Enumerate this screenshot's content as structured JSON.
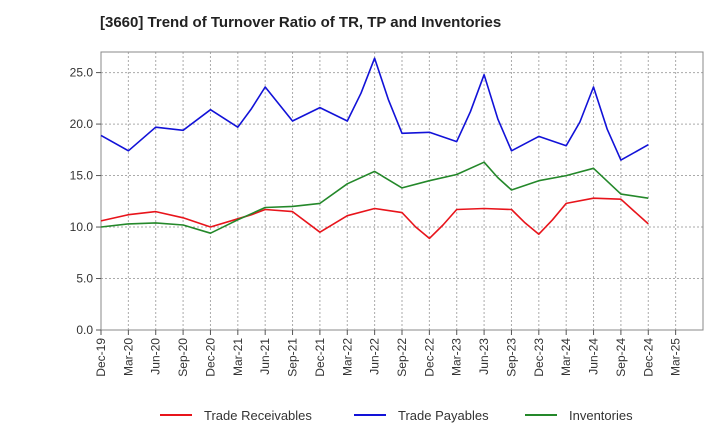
{
  "title": "[3660]  Trend of Turnover Ratio of TR, TP and Inventories",
  "chart_data": {
    "type": "line",
    "x": [
      "Dec-19",
      "Mar-20",
      "Jun-20",
      "Sep-20",
      "Dec-20",
      "Mar-21",
      "Jun-21",
      "Sep-21",
      "Dec-21",
      "Mar-22",
      "Jun-22",
      "Sep-22",
      "Dec-22",
      "Mar-23",
      "Jun-23",
      "Sep-23",
      "Dec-23",
      "Mar-24",
      "Jun-24",
      "Sep-24",
      "Dec-24",
      "Mar-25"
    ],
    "y_ticks": [
      "0.0",
      "5.0",
      "10.0",
      "15.0",
      "20.0",
      "25.0"
    ],
    "ylim": [
      0,
      27
    ],
    "grid": true,
    "legend_position": "bottom",
    "series": [
      {
        "name": "Trade Receivables",
        "color": "#e8141b",
        "points": [
          [
            0,
            10.6
          ],
          [
            1,
            11.2
          ],
          [
            2,
            11.5
          ],
          [
            3,
            10.9
          ],
          [
            4,
            10.0
          ],
          [
            5,
            10.8
          ],
          [
            5.5,
            11.2
          ],
          [
            6,
            11.7
          ],
          [
            7,
            11.5
          ],
          [
            8,
            9.5
          ],
          [
            9,
            11.1
          ],
          [
            10,
            11.8
          ],
          [
            11,
            11.4
          ],
          [
            11.5,
            10.0
          ],
          [
            12,
            8.9
          ],
          [
            12.5,
            10.2
          ],
          [
            13,
            11.7
          ],
          [
            14,
            11.8
          ],
          [
            15,
            11.7
          ],
          [
            15.5,
            10.4
          ],
          [
            16,
            9.3
          ],
          [
            16.5,
            10.7
          ],
          [
            17,
            12.3
          ],
          [
            18,
            12.8
          ],
          [
            19,
            12.7
          ],
          [
            19.5,
            11.5
          ],
          [
            20,
            10.3
          ]
        ]
      },
      {
        "name": "Trade Payables",
        "color": "#1212d8",
        "points": [
          [
            0,
            18.9
          ],
          [
            1,
            17.4
          ],
          [
            2,
            19.7
          ],
          [
            3,
            19.4
          ],
          [
            4,
            21.4
          ],
          [
            5,
            19.7
          ],
          [
            5.5,
            21.5
          ],
          [
            6,
            23.6
          ],
          [
            7,
            20.3
          ],
          [
            8,
            21.6
          ],
          [
            9,
            20.3
          ],
          [
            9.5,
            23.0
          ],
          [
            10,
            26.4
          ],
          [
            10.5,
            22.4
          ],
          [
            11,
            19.1
          ],
          [
            12,
            19.2
          ],
          [
            13,
            18.3
          ],
          [
            13.5,
            21.2
          ],
          [
            14,
            24.8
          ],
          [
            14.5,
            20.5
          ],
          [
            15,
            17.4
          ],
          [
            16,
            18.8
          ],
          [
            17,
            17.9
          ],
          [
            17.5,
            20.2
          ],
          [
            18,
            23.6
          ],
          [
            18.5,
            19.5
          ],
          [
            19,
            16.5
          ],
          [
            20,
            18.0
          ]
        ]
      },
      {
        "name": "Inventories",
        "color": "#24882a",
        "points": [
          [
            0,
            10.0
          ],
          [
            1,
            10.3
          ],
          [
            2,
            10.4
          ],
          [
            3,
            10.2
          ],
          [
            4,
            9.4
          ],
          [
            5,
            10.7
          ],
          [
            6,
            11.9
          ],
          [
            7,
            12.0
          ],
          [
            8,
            12.3
          ],
          [
            9,
            14.2
          ],
          [
            10,
            15.4
          ],
          [
            11,
            13.8
          ],
          [
            12,
            14.5
          ],
          [
            13,
            15.1
          ],
          [
            14,
            16.3
          ],
          [
            14.5,
            14.8
          ],
          [
            15,
            13.6
          ],
          [
            16,
            14.5
          ],
          [
            17,
            15.0
          ],
          [
            18,
            15.7
          ],
          [
            19,
            13.2
          ],
          [
            20,
            12.8
          ]
        ]
      }
    ]
  }
}
